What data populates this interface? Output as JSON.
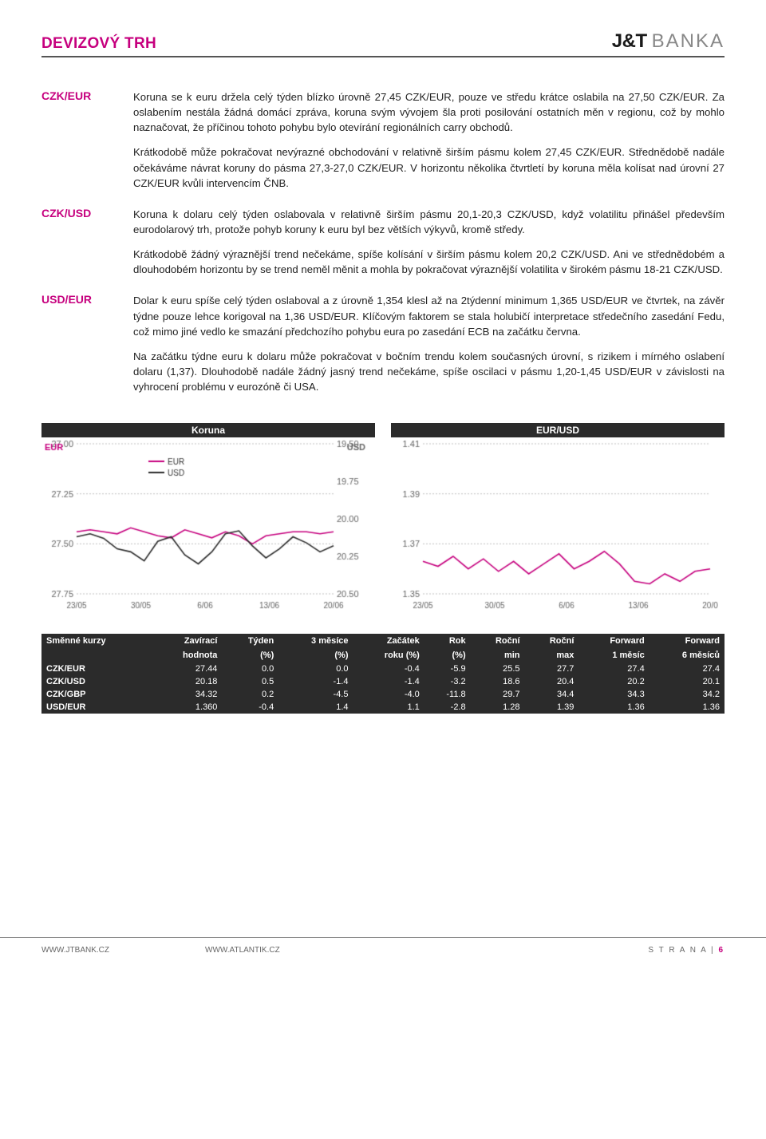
{
  "header": {
    "title": "DEVIZOVÝ TRH",
    "brand_jt": "J&T",
    "brand_banka": "BANKA"
  },
  "sections": [
    {
      "label": "CZK/EUR",
      "paragraphs": [
        "Koruna se k euru držela celý týden blízko úrovně 27,45 CZK/EUR, pouze ve středu krátce oslabila na 27,50 CZK/EUR. Za oslabením nestála žádná domácí zpráva, koruna svým vývojem šla proti posilování ostatních měn v regionu, což by mohlo naznačovat, že příčinou tohoto pohybu bylo otevírání regionálních carry obchodů.",
        "Krátkodobě může pokračovat nevýrazné obchodování v relativně širším pásmu kolem 27,45 CZK/EUR. Střednědobě nadále očekáváme návrat koruny do pásma 27,3-27,0 CZK/EUR. V horizontu několika čtvrtletí by koruna měla kolísat nad úrovní 27 CZK/EUR kvůli intervencím ČNB."
      ]
    },
    {
      "label": "CZK/USD",
      "paragraphs": [
        "Koruna k dolaru celý týden oslabovala v relativně širším pásmu 20,1-20,3 CZK/USD, když volatilitu přinášel především eurodolarový trh, protože pohyb koruny k euru byl bez větších výkyvů, kromě středy.",
        "Krátkodobě žádný výraznější trend nečekáme, spíše kolísání v širším pásmu kolem 20,2 CZK/USD. Ani ve střednědobém a dlouhodobém horizontu by se trend neměl měnit a mohla by pokračovat výraznější volatilita v širokém pásmu 18-21 CZK/USD."
      ]
    },
    {
      "label": "USD/EUR",
      "paragraphs": [
        "Dolar k euru spíše celý týden oslaboval a z úrovně 1,354 klesl až na 2týdenní minimum 1,365 USD/EUR ve čtvrtek, na závěr týdne pouze lehce korigoval na 1,36 USD/EUR. Klíčovým faktorem se stala holubičí interpretace středečního zasedání Fedu, což mimo jiné vedlo ke smazání předchozího pohybu eura po zasedání ECB na začátku června.",
        "Na začátku týdne euru k dolaru může pokračovat v bočním trendu kolem současných úrovní, s rizikem i mírného oslabení dolaru (1,37). Dlouhodobě nadále žádný jasný trend nečekáme, spíše oscilaci v pásmu 1,20-1,45 USD/EUR v závislosti na vyhrocení problému v eurozóně či USA."
      ]
    }
  ],
  "chart1": {
    "title": "Koruna",
    "left_axis_label": "EUR",
    "right_axis_label": "USD",
    "left_ticks": [
      "27.00",
      "27.25",
      "27.50",
      "27.75"
    ],
    "right_ticks": [
      "19.50",
      "19.75",
      "20.00",
      "20.25",
      "20.50"
    ],
    "x_labels": [
      "23/05",
      "30/05",
      "6/06",
      "13/06",
      "20/06"
    ],
    "legend": [
      "EUR",
      "USD"
    ],
    "eur_color": "#c6007e",
    "usd_color": "#2b2b2b",
    "grid_color": "#c0c0c0",
    "bg": "#ffffff",
    "eur_ymin": 27.0,
    "eur_ymax": 27.75,
    "usd_ymin": 19.5,
    "usd_ymax": 20.5,
    "eur_series": [
      27.44,
      27.43,
      27.44,
      27.45,
      27.42,
      27.44,
      27.46,
      27.47,
      27.43,
      27.45,
      27.47,
      27.44,
      27.46,
      27.5,
      27.46,
      27.45,
      27.44,
      27.44,
      27.45,
      27.44
    ],
    "usd_series": [
      20.12,
      20.1,
      20.13,
      20.2,
      20.22,
      20.28,
      20.15,
      20.12,
      20.24,
      20.3,
      20.22,
      20.1,
      20.08,
      20.18,
      20.26,
      20.2,
      20.12,
      20.16,
      20.22,
      20.18
    ]
  },
  "chart2": {
    "title": "EUR/USD",
    "y_ticks": [
      "1.41",
      "1.39",
      "1.37",
      "1.35"
    ],
    "x_labels": [
      "23/05",
      "30/05",
      "6/06",
      "13/06",
      "20/0"
    ],
    "color": "#c6007e",
    "grid_color": "#c0c0c0",
    "bg": "#ffffff",
    "ymin": 1.35,
    "ymax": 1.41,
    "series": [
      1.363,
      1.361,
      1.365,
      1.36,
      1.364,
      1.359,
      1.363,
      1.358,
      1.362,
      1.366,
      1.36,
      1.363,
      1.367,
      1.362,
      1.355,
      1.354,
      1.358,
      1.355,
      1.359,
      1.36
    ]
  },
  "table": {
    "header1": [
      "Směnné kurzy",
      "Zavírací",
      "Týden",
      "3 měsíce",
      "Začátek",
      "Rok",
      "Roční",
      "Roční",
      "Forward",
      "Forward"
    ],
    "header2": [
      "",
      "hodnota",
      "(%)",
      "(%)",
      "roku (%)",
      "(%)",
      "min",
      "max",
      "1 měsíc",
      "6 měsíců"
    ],
    "rows": [
      [
        "CZK/EUR",
        "27.44",
        "0.0",
        "0.0",
        "-0.4",
        "-5.9",
        "25.5",
        "27.7",
        "27.4",
        "27.4"
      ],
      [
        "CZK/USD",
        "20.18",
        "0.5",
        "-1.4",
        "-1.4",
        "-3.2",
        "18.6",
        "20.4",
        "20.2",
        "20.1"
      ],
      [
        "CZK/GBP",
        "34.32",
        "0.2",
        "-4.5",
        "-4.0",
        "-11.8",
        "29.7",
        "34.4",
        "34.3",
        "34.2"
      ],
      [
        "USD/EUR",
        "1.360",
        "-0.4",
        "1.4",
        "1.1",
        "-2.8",
        "1.28",
        "1.39",
        "1.36",
        "1.36"
      ]
    ]
  },
  "footer": {
    "link1": "WWW.JTBANK.CZ",
    "link2": "WWW.ATLANTIK.CZ",
    "strana": "S T R A N A",
    "page": "6"
  }
}
